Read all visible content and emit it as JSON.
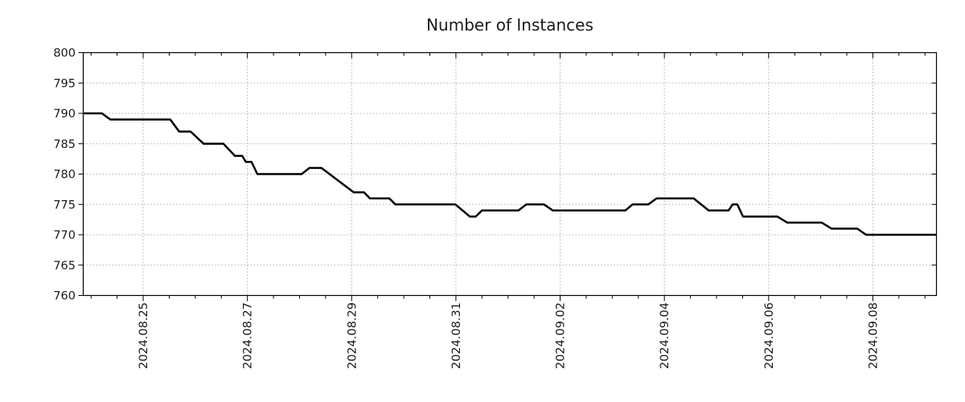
{
  "chart_data": {
    "type": "line",
    "title": "Number of Instances",
    "xlabel": "",
    "ylabel": "",
    "legend": "none",
    "grid": "dotted",
    "x_unit": "days relative to 2024.08.25",
    "xlim": [
      -1.15,
      15.22
    ],
    "x_major_ticks": [
      {
        "day": 0,
        "label": "2024.08.25"
      },
      {
        "day": 2,
        "label": "2024.08.27"
      },
      {
        "day": 4,
        "label": "2024.08.29"
      },
      {
        "day": 6,
        "label": "2024.08.31"
      },
      {
        "day": 8,
        "label": "2024.09.02"
      },
      {
        "day": 10,
        "label": "2024.09.04"
      },
      {
        "day": 12,
        "label": "2024.09.06"
      },
      {
        "day": 14,
        "label": "2024.09.08"
      }
    ],
    "x_minor_step": 0.5,
    "ylim": [
      760,
      800
    ],
    "y_major_ticks": [
      760,
      765,
      770,
      775,
      780,
      785,
      790,
      795,
      800
    ],
    "series": [
      {
        "name": "instances",
        "color": "#000000",
        "line_width": 2.5,
        "points": [
          [
            -1.15,
            790
          ],
          [
            -0.79,
            790
          ],
          [
            -0.63,
            789
          ],
          [
            0.52,
            789
          ],
          [
            0.69,
            787
          ],
          [
            0.91,
            787
          ],
          [
            1.16,
            785
          ],
          [
            1.54,
            785
          ],
          [
            1.76,
            783
          ],
          [
            1.9,
            783
          ],
          [
            1.97,
            782
          ],
          [
            2.08,
            782
          ],
          [
            2.19,
            780
          ],
          [
            3.04,
            780
          ],
          [
            3.19,
            781
          ],
          [
            3.42,
            781
          ],
          [
            4.04,
            777
          ],
          [
            4.24,
            777
          ],
          [
            4.35,
            776
          ],
          [
            4.72,
            776
          ],
          [
            4.84,
            775
          ],
          [
            5.99,
            775
          ],
          [
            6.27,
            773
          ],
          [
            6.38,
            773
          ],
          [
            6.5,
            774
          ],
          [
            7.2,
            774
          ],
          [
            7.35,
            775
          ],
          [
            7.69,
            775
          ],
          [
            7.86,
            774
          ],
          [
            9.25,
            774
          ],
          [
            9.39,
            775
          ],
          [
            9.69,
            775
          ],
          [
            9.85,
            776
          ],
          [
            10.56,
            776
          ],
          [
            10.85,
            774
          ],
          [
            11.23,
            774
          ],
          [
            11.31,
            775
          ],
          [
            11.4,
            775
          ],
          [
            11.51,
            773
          ],
          [
            12.17,
            773
          ],
          [
            12.36,
            772
          ],
          [
            13.02,
            772
          ],
          [
            13.21,
            771
          ],
          [
            13.7,
            771
          ],
          [
            13.87,
            770
          ],
          [
            15.22,
            770
          ]
        ]
      }
    ],
    "colors": {
      "grid": "#b0b0b0",
      "axis": "#000000",
      "text": "#1a1a1a",
      "background": "#ffffff"
    }
  }
}
